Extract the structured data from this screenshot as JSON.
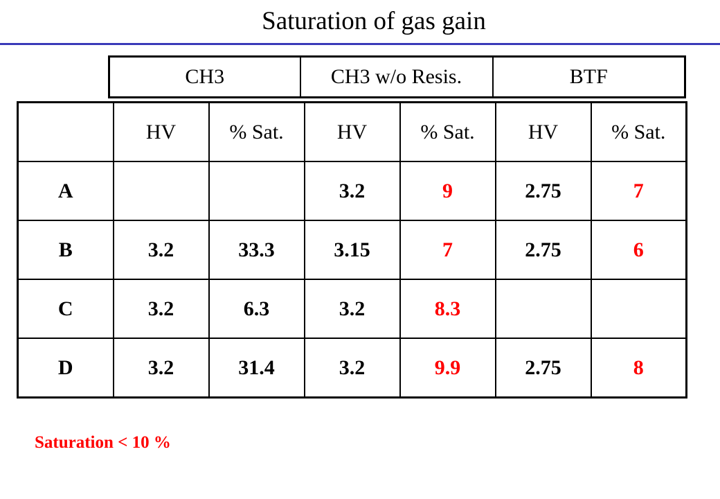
{
  "title": "Saturation of gas gain",
  "groups": [
    "CH3",
    "CH3 w/o Resis.",
    "BTF"
  ],
  "columns": [
    "",
    "HV",
    "% Sat.",
    "HV",
    "% Sat.",
    "HV",
    "% Sat."
  ],
  "rows": [
    [
      "A",
      "",
      "",
      "3.2",
      "9",
      "2.75",
      "7"
    ],
    [
      "B",
      "3.2",
      "33.3",
      "3.15",
      "7",
      "2.75",
      "6"
    ],
    [
      "C",
      "3.2",
      "6.3",
      "3.2",
      "8.3",
      "",
      ""
    ],
    [
      "D",
      "3.2",
      "31.4",
      "3.2",
      "9.9",
      "2.75",
      "8"
    ]
  ],
  "footnote": "Saturation < 10 %",
  "colors": {
    "highlight": "#ff0000",
    "title_rule": "#3a3ab8"
  }
}
